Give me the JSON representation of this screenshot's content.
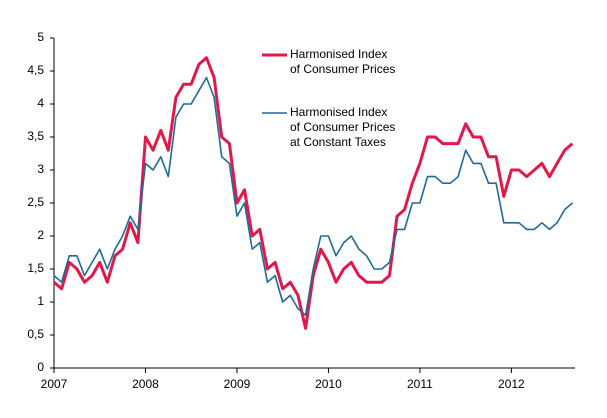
{
  "chart_data": {
    "type": "line",
    "x": [
      2007,
      2007.083,
      2007.167,
      2007.25,
      2007.333,
      2007.417,
      2007.5,
      2007.583,
      2007.667,
      2007.75,
      2007.833,
      2007.917,
      2008,
      2008.083,
      2008.167,
      2008.25,
      2008.333,
      2008.417,
      2008.5,
      2008.583,
      2008.667,
      2008.75,
      2008.833,
      2008.917,
      2009,
      2009.083,
      2009.167,
      2009.25,
      2009.333,
      2009.417,
      2009.5,
      2009.583,
      2009.667,
      2009.75,
      2009.833,
      2009.917,
      2010,
      2010.083,
      2010.167,
      2010.25,
      2010.333,
      2010.417,
      2010.5,
      2010.583,
      2010.667,
      2010.75,
      2010.833,
      2010.917,
      2011,
      2011.083,
      2011.167,
      2011.25,
      2011.333,
      2011.417,
      2011.5,
      2011.583,
      2011.667,
      2011.75,
      2011.833,
      2011.917,
      2012,
      2012.083,
      2012.167,
      2012.25,
      2012.333,
      2012.417,
      2012.5,
      2012.583,
      2012.667
    ],
    "series": [
      {
        "name": "Harmonised Index of Consumer Prices",
        "color": "#e0194a",
        "width": 3,
        "values": [
          1.3,
          1.2,
          1.6,
          1.5,
          1.3,
          1.4,
          1.6,
          1.3,
          1.7,
          1.8,
          2.2,
          1.9,
          3.5,
          3.3,
          3.6,
          3.3,
          4.1,
          4.3,
          4.3,
          4.6,
          4.7,
          4.4,
          3.5,
          3.4,
          2.5,
          2.7,
          2.0,
          2.1,
          1.5,
          1.6,
          1.2,
          1.3,
          1.1,
          0.6,
          1.4,
          1.8,
          1.6,
          1.3,
          1.5,
          1.6,
          1.4,
          1.3,
          1.3,
          1.3,
          1.4,
          2.3,
          2.4,
          2.8,
          3.1,
          3.5,
          3.5,
          3.4,
          3.4,
          3.4,
          3.7,
          3.5,
          3.5,
          3.2,
          3.2,
          2.6,
          3.0,
          3.0,
          2.9,
          3.0,
          3.1,
          2.9,
          3.1,
          3.3,
          3.4
        ]
      },
      {
        "name": "Harmonised Index of Consumer Prices at Constant Taxes",
        "color": "#1f6a9a",
        "width": 1.6,
        "values": [
          1.4,
          1.3,
          1.7,
          1.7,
          1.4,
          1.6,
          1.8,
          1.5,
          1.8,
          2.0,
          2.3,
          2.1,
          3.1,
          3.0,
          3.2,
          2.9,
          3.8,
          4.0,
          4.0,
          4.2,
          4.4,
          4.1,
          3.2,
          3.1,
          2.3,
          2.5,
          1.8,
          1.9,
          1.3,
          1.4,
          1.0,
          1.1,
          0.9,
          0.8,
          1.5,
          2.0,
          2.0,
          1.7,
          1.9,
          2.0,
          1.8,
          1.7,
          1.5,
          1.5,
          1.6,
          2.1,
          2.1,
          2.5,
          2.5,
          2.9,
          2.9,
          2.8,
          2.8,
          2.9,
          3.3,
          3.1,
          3.1,
          2.8,
          2.8,
          2.2,
          2.2,
          2.2,
          2.1,
          2.1,
          2.2,
          2.1,
          2.2,
          2.4,
          2.5
        ]
      }
    ],
    "xlim": [
      2007,
      2012.75
    ],
    "xticks": [
      2007,
      2008,
      2009,
      2010,
      2011,
      2012
    ],
    "ylim": [
      0,
      5
    ],
    "yticks": [
      0,
      {
        "value": 0.5,
        "label": "0,5"
      },
      1,
      {
        "value": 1.5,
        "label": "1,5"
      },
      2,
      {
        "value": 2.5,
        "label": "2,5"
      },
      3,
      {
        "value": 3.5,
        "label": "3,5"
      },
      4,
      {
        "value": 4.5,
        "label": "4,5"
      },
      5
    ],
    "grid": false
  }
}
